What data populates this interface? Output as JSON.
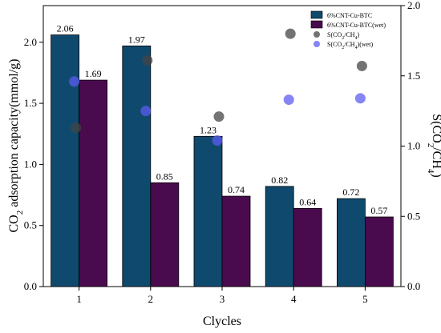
{
  "chart_data": {
    "type": "bar",
    "categories": [
      "1",
      "2",
      "3",
      "4",
      "5"
    ],
    "xlabel": "Clycles",
    "ylabel": {
      "pre": "CO",
      "sub": "2",
      "post": " adsorption capacity(mmol/g)"
    },
    "ylabel_right": {
      "pre": "S(CO",
      "sub1": "2",
      "mid": "/CH",
      "sub2": "4",
      "post": ")"
    },
    "ylim": [
      0,
      2.3
    ],
    "ylim_right": [
      0,
      2.0
    ],
    "yticks": [
      "0.0",
      "0.5",
      "1.0",
      "1.5",
      "2.0"
    ],
    "yticks_right": [
      "0.0",
      "0.5",
      "1.0",
      "1.5",
      "2.0"
    ],
    "bar_series": [
      {
        "name": "6%CNT-Cu-BTC",
        "color": "#0f4a6e",
        "values": [
          2.06,
          1.97,
          1.23,
          0.82,
          0.72
        ],
        "labels": [
          "2.06",
          "1.97",
          "1.23",
          "0.82",
          "0.72"
        ]
      },
      {
        "name": "6%CNT-Cu-BTC(wet)",
        "color": "#4a0a4e",
        "values": [
          1.69,
          0.85,
          0.74,
          0.64,
          0.57
        ],
        "labels": [
          "1.69",
          "0.85",
          "0.74",
          "0.64",
          "0.57"
        ]
      }
    ],
    "scatter_series": [
      {
        "name": "S(CO2/CH4)",
        "color": "#444444",
        "opacity": 0.75,
        "values": [
          1.13,
          1.61,
          1.21,
          1.8,
          1.57
        ]
      },
      {
        "name": "S(CO2/CH4)(wet)",
        "color": "#5c5cf0",
        "opacity": 0.75,
        "values": [
          1.46,
          1.25,
          1.04,
          1.33,
          1.34
        ]
      }
    ]
  }
}
